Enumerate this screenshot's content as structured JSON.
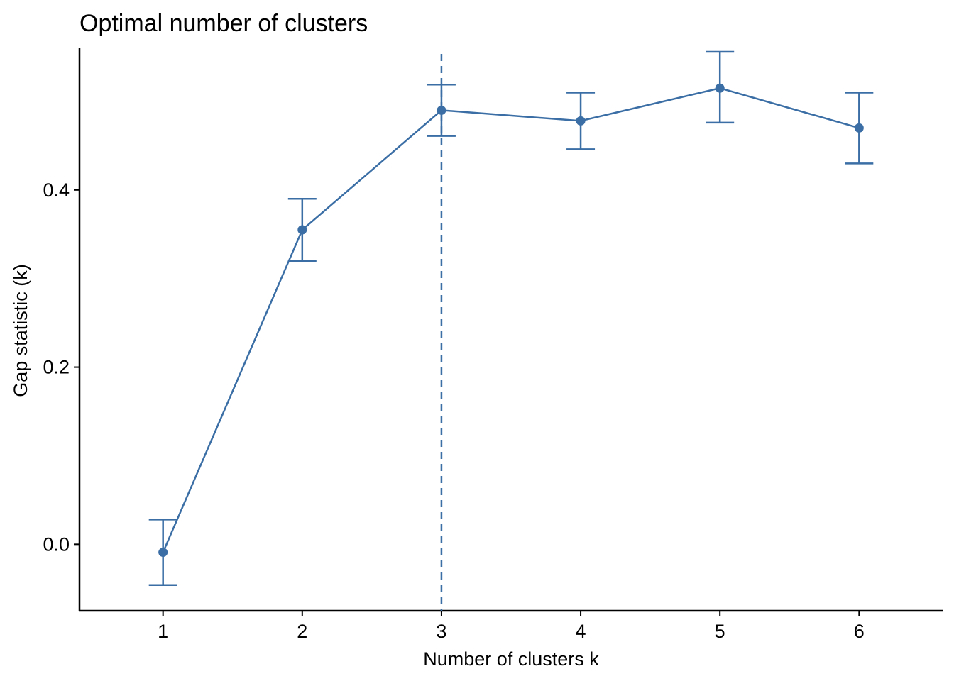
{
  "chart_data": {
    "type": "line",
    "title": "Optimal number of clusters",
    "xlabel": "Number of clusters k",
    "ylabel": "Gap statistic (k)",
    "x": [
      1,
      2,
      3,
      4,
      5,
      6
    ],
    "y_ticks": [
      "0.0",
      "0.2",
      "0.4"
    ],
    "y_tick_values": [
      0.0,
      0.2,
      0.4
    ],
    "xlim": [
      0.4,
      6.6
    ],
    "ylim": [
      -0.075,
      0.56
    ],
    "series": [
      {
        "values": [
          -0.009,
          0.355,
          0.49,
          0.478,
          0.515,
          0.47
        ],
        "err_low": [
          -0.046,
          0.32,
          0.461,
          0.446,
          0.476,
          0.43
        ],
        "err_high": [
          0.028,
          0.39,
          0.519,
          0.51,
          0.556,
          0.51
        ]
      }
    ],
    "optimal_k": 3,
    "color": "#3A6EA5",
    "grid": false,
    "legend": "none"
  }
}
